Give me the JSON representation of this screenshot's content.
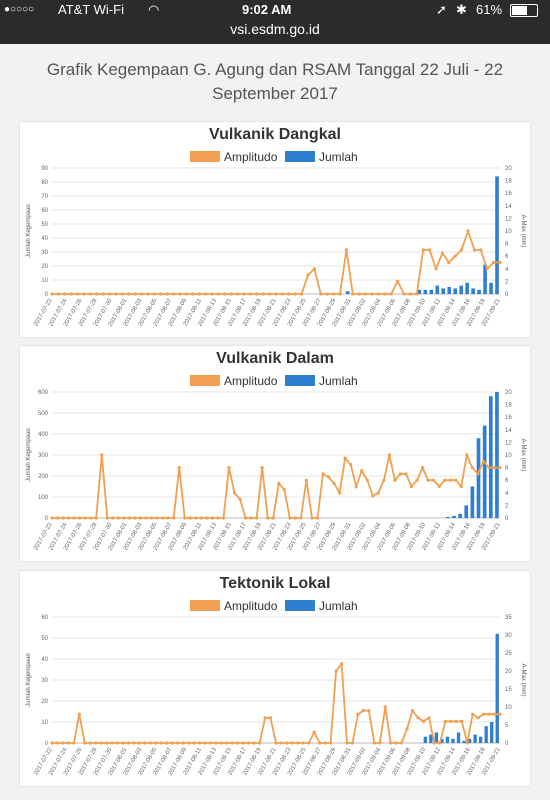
{
  "status_bar": {
    "signal": "●○○○○",
    "carrier": "AT&T Wi-Fi",
    "wifi_icon": "◠",
    "time": "9:02 AM",
    "location_icon": "➚",
    "bluetooth_icon": "✱",
    "battery_text": "61%"
  },
  "browser": {
    "url": "vsi.esdm.go.id"
  },
  "page": {
    "title": "Grafik Kegempaan G. Agung dan RSAM Tanggal 22 Juli - 22 September 2017"
  },
  "colors": {
    "amplitudo": "#f0a050",
    "jumlah": "#2f7fd0"
  },
  "chart_data": [
    {
      "type": "bar",
      "title": "Vulkanik Dangkal",
      "legend": [
        "Amplitudo",
        "Jumlah"
      ],
      "ylabel": "Jumlah Kegempaan",
      "y2label": "A-Max (mm)",
      "ylim": [
        0,
        90
      ],
      "y2lim": [
        0,
        20
      ],
      "yticks": [
        0,
        10,
        20,
        30,
        40,
        50,
        60,
        70,
        80,
        90
      ],
      "y2ticks": [
        0,
        2,
        4,
        6,
        8,
        10,
        12,
        14,
        16,
        18,
        20
      ],
      "xlabels": [
        "2017-07-22",
        "2017-07-24",
        "2017-07-26",
        "2017-07-28",
        "2017-07-30",
        "2017-08-01",
        "2017-08-03",
        "2017-08-05",
        "2017-08-07",
        "2017-08-09",
        "2017-08-11",
        "2017-08-13",
        "2017-08-15",
        "2017-08-17",
        "2017-08-19",
        "2017-08-21",
        "2017-08-23",
        "2017-08-25",
        "2017-08-27",
        "2017-08-29",
        "2017-08-31",
        "2017-09-02",
        "2017-09-04",
        "2017-09-06",
        "2017-09-08",
        "2017-09-10",
        "2017-09-12",
        "2017-09-14",
        "2017-09-16",
        "2017-09-18",
        "2017-09-21"
      ],
      "jumlah": [
        0,
        0,
        0,
        0,
        0,
        0,
        0,
        0,
        0,
        0,
        0,
        0,
        0,
        0,
        0,
        0,
        0,
        0,
        0,
        0,
        0,
        0,
        0,
        0,
        0,
        0,
        0,
        0,
        0,
        0,
        0,
        0,
        0,
        0,
        0,
        0,
        0,
        0,
        0,
        0,
        0,
        0,
        0,
        0,
        0,
        0,
        0,
        0,
        0,
        2,
        0,
        0,
        0,
        0,
        0,
        0,
        0,
        0,
        0,
        0,
        0,
        3,
        3,
        3,
        6,
        4,
        5,
        4,
        6,
        8,
        4,
        3,
        21,
        8,
        84
      ],
      "amplitudo": [
        0,
        0,
        0,
        0,
        0,
        0,
        0,
        0,
        0,
        0,
        0,
        0,
        0,
        0,
        0,
        0,
        0,
        0,
        0,
        0,
        0,
        0,
        0,
        0,
        0,
        0,
        0,
        0,
        0,
        0,
        0,
        0,
        0,
        0,
        0,
        0,
        0,
        0,
        0,
        0,
        3,
        4,
        0,
        0,
        0,
        0,
        7,
        0,
        0,
        0,
        0,
        0,
        0,
        0,
        2,
        0,
        0,
        0,
        7,
        7,
        4,
        6.5,
        5,
        6,
        7,
        10,
        7,
        7,
        4,
        5,
        5
      ]
    },
    {
      "type": "bar",
      "title": "Vulkanik Dalam",
      "legend": [
        "Amplitudo",
        "Jumlah"
      ],
      "ylabel": "Jumlah Kegempaan",
      "y2label": "A-Max (mm)",
      "ylim": [
        0,
        600
      ],
      "y2lim": [
        0,
        20
      ],
      "yticks": [
        0,
        100,
        200,
        300,
        400,
        500,
        600
      ],
      "y2ticks": [
        0,
        2,
        4,
        6,
        8,
        10,
        12,
        14,
        16,
        18,
        20
      ],
      "xlabels": [
        "2017-07-22",
        "2017-07-24",
        "2017-07-26",
        "2017-07-28",
        "2017-07-30",
        "2017-08-01",
        "2017-08-03",
        "2017-08-05",
        "2017-08-07",
        "2017-08-09",
        "2017-08-11",
        "2017-08-13",
        "2017-08-15",
        "2017-08-17",
        "2017-08-19",
        "2017-08-21",
        "2017-08-23",
        "2017-08-25",
        "2017-08-27",
        "2017-08-29",
        "2017-08-31",
        "2017-09-02",
        "2017-09-04",
        "2017-09-06",
        "2017-09-08",
        "2017-09-10",
        "2017-09-12",
        "2017-09-14",
        "2017-09-16",
        "2017-09-18",
        "2017-09-21"
      ],
      "jumlah": [
        0,
        0,
        0,
        0,
        0,
        0,
        0,
        0,
        0,
        0,
        0,
        0,
        0,
        0,
        0,
        0,
        0,
        0,
        0,
        0,
        0,
        0,
        0,
        0,
        0,
        0,
        0,
        0,
        0,
        0,
        0,
        0,
        0,
        0,
        0,
        0,
        0,
        0,
        0,
        0,
        0,
        0,
        0,
        0,
        0,
        0,
        0,
        0,
        0,
        0,
        0,
        0,
        0,
        0,
        0,
        0,
        0,
        0,
        0,
        0,
        0,
        0,
        0,
        0,
        5,
        10,
        20,
        60,
        150,
        380,
        440,
        580,
        600
      ],
      "amplitudo": [
        0,
        0,
        0,
        0,
        0,
        0,
        0,
        0,
        0,
        10,
        0,
        0,
        0,
        0,
        0,
        0,
        0,
        0,
        0,
        0,
        0,
        0,
        0,
        8,
        0,
        0,
        0,
        0,
        0,
        0,
        0,
        0,
        8,
        4,
        3,
        0,
        0,
        0,
        8,
        0,
        0,
        5.5,
        4.5,
        0,
        0,
        0,
        6,
        0,
        0,
        7,
        6.5,
        5.5,
        4,
        9.5,
        8.5,
        5,
        7.5,
        6,
        3.5,
        4,
        6,
        10,
        6,
        7,
        7,
        5,
        6,
        8,
        6,
        6,
        5,
        6,
        6,
        6,
        5,
        10,
        8,
        7,
        9,
        8,
        8,
        8
      ]
    },
    {
      "type": "bar",
      "title": "Tektonik Lokal",
      "legend": [
        "Amplitudo",
        "Jumlah"
      ],
      "ylabel": "Jumlah Kegempaan",
      "y2label": "A-Max (mm)",
      "ylim": [
        0,
        60
      ],
      "y2lim": [
        0,
        35
      ],
      "yticks": [
        0,
        10,
        20,
        30,
        40,
        50,
        60
      ],
      "y2ticks": [
        0,
        5,
        10,
        15,
        20,
        25,
        30,
        35
      ],
      "xlabels": [
        "2017-07-22",
        "2017-07-24",
        "2017-07-26",
        "2017-07-28",
        "2017-07-30",
        "2017-08-01",
        "2017-08-03",
        "2017-08-05",
        "2017-08-07",
        "2017-08-09",
        "2017-08-11",
        "2017-08-13",
        "2017-08-15",
        "2017-08-17",
        "2017-08-19",
        "2017-08-21",
        "2017-08-23",
        "2017-08-25",
        "2017-08-27",
        "2017-08-29",
        "2017-08-31",
        "2017-09-02",
        "2017-09-04",
        "2017-09-06",
        "2017-09-08",
        "2017-09-10",
        "2017-09-12",
        "2017-09-14",
        "2017-09-16",
        "2017-09-18",
        "2017-09-21"
      ],
      "jumlah": [
        0,
        0,
        0,
        0,
        0,
        0,
        0,
        0,
        0,
        0,
        0,
        0,
        0,
        0,
        0,
        0,
        0,
        0,
        0,
        0,
        0,
        0,
        0,
        0,
        0,
        0,
        0,
        0,
        0,
        0,
        0,
        0,
        0,
        0,
        0,
        0,
        0,
        0,
        0,
        0,
        0,
        0,
        0,
        0,
        0,
        0,
        0,
        0,
        0,
        0,
        0,
        0,
        0,
        0,
        0,
        0,
        0,
        0,
        0,
        0,
        0,
        0,
        0,
        0,
        0,
        0,
        0,
        3,
        4,
        5,
        2,
        3,
        2,
        5,
        1,
        2,
        4,
        3,
        8,
        10,
        52
      ],
      "amplitudo": [
        0,
        0,
        0,
        0,
        0,
        8,
        0,
        0,
        0,
        0,
        0,
        0,
        0,
        0,
        0,
        0,
        0,
        0,
        0,
        0,
        0,
        0,
        0,
        0,
        0,
        0,
        0,
        0,
        0,
        0,
        0,
        0,
        0,
        0,
        0,
        0,
        0,
        0,
        0,
        7,
        7,
        0,
        0,
        0,
        0,
        0,
        0,
        0,
        3,
        0,
        0,
        0,
        20,
        22,
        0,
        0,
        8,
        9,
        9,
        0,
        0,
        10,
        0,
        0,
        0,
        4,
        9,
        7,
        6,
        7,
        0,
        0,
        6,
        6,
        6,
        6,
        0,
        8,
        7,
        8,
        8,
        8,
        8
      ]
    }
  ]
}
